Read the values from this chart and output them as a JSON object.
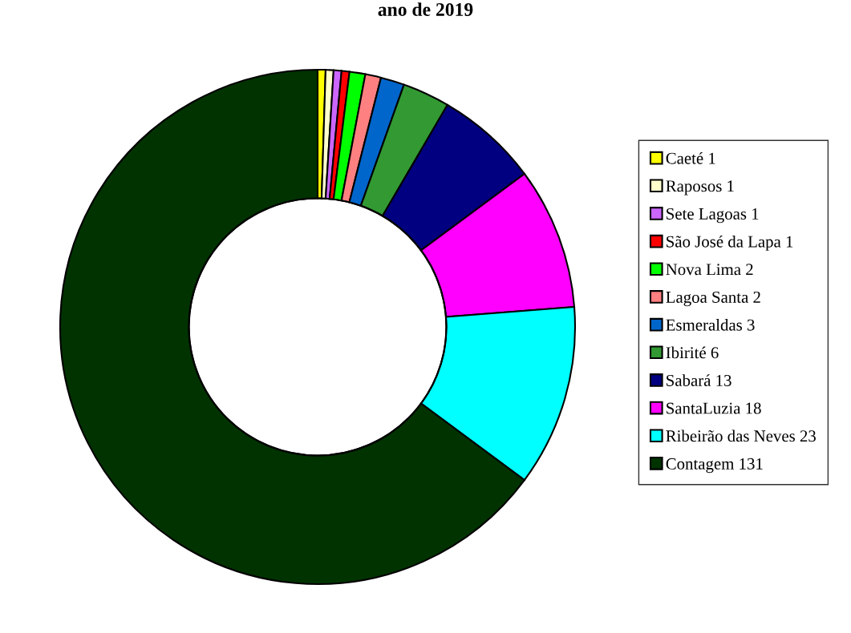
{
  "chart_data": {
    "type": "donut",
    "title": "ano de 2019",
    "categories": [
      "Caeté 1",
      "Raposos 1",
      "Sete Lagoas 1",
      "São José da Lapa 1",
      "Nova Lima 2",
      "Lagoa Santa 2",
      "Esmeraldas 3",
      "Ibirité 6",
      "Sabará 13",
      "SantaLuzia 18",
      "Ribeirão das Neves 23",
      "Contagem 131"
    ],
    "values": [
      1,
      1,
      1,
      1,
      2,
      2,
      3,
      6,
      13,
      18,
      23,
      131
    ],
    "colors": [
      "#ffff00",
      "#ffffcc",
      "#cc66ff",
      "#ff0000",
      "#00ff00",
      "#ff8080",
      "#0066cc",
      "#339933",
      "#000080",
      "#ff00ff",
      "#00ffff",
      "#003300"
    ],
    "legend": "right"
  }
}
